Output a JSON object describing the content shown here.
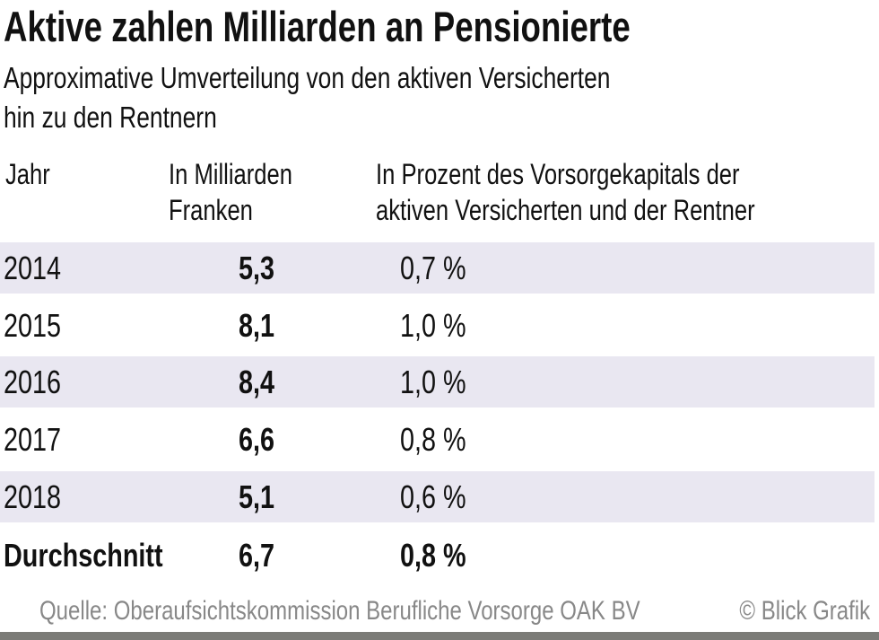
{
  "header": {
    "title": "Aktive zahlen Milliarden an Pensionierte",
    "subtitle_line1": "Approximative Umverteilung von den aktiven Versicherten",
    "subtitle_line2": "hin zu den Rentnern"
  },
  "colors": {
    "row_shade": "#e9e7f1",
    "footer_text": "#888888",
    "bottom_bar": "#7b7b77"
  },
  "chart_data": {
    "type": "table",
    "title": "Aktive zahlen Milliarden an Pensionierte",
    "subtitle": "Approximative Umverteilung von den aktiven Versicherten hin zu den Rentnern",
    "columns": [
      {
        "line1": "Jahr",
        "line2": ""
      },
      {
        "line1": "In Milliarden",
        "line2": "Franken"
      },
      {
        "line1": "In Prozent des Vorsorgekapitals der",
        "line2": "aktiven Versicherten und der Rentner"
      }
    ],
    "rows": [
      {
        "year": "2014",
        "billions": "5,3",
        "percent": "0,7 %"
      },
      {
        "year": "2015",
        "billions": "8,1",
        "percent": "1,0 %"
      },
      {
        "year": "2016",
        "billions": "8,4",
        "percent": "1,0 %"
      },
      {
        "year": "2017",
        "billions": "6,6",
        "percent": "0,8 %"
      },
      {
        "year": "2018",
        "billions": "5,1",
        "percent": "0,6 %"
      }
    ],
    "average": {
      "label": "Durchschnitt",
      "billions": "6,7",
      "percent": "0,8 %"
    },
    "values_billions_chf": [
      5.3,
      8.1,
      8.4,
      6.6,
      5.1
    ],
    "values_percent": [
      0.7,
      1.0,
      1.0,
      0.8,
      0.6
    ]
  },
  "footer": {
    "source": "Quelle: Oberaufsichtskommission Berufliche Vorsorge OAK BV",
    "copyright": "© Blick Grafik"
  }
}
